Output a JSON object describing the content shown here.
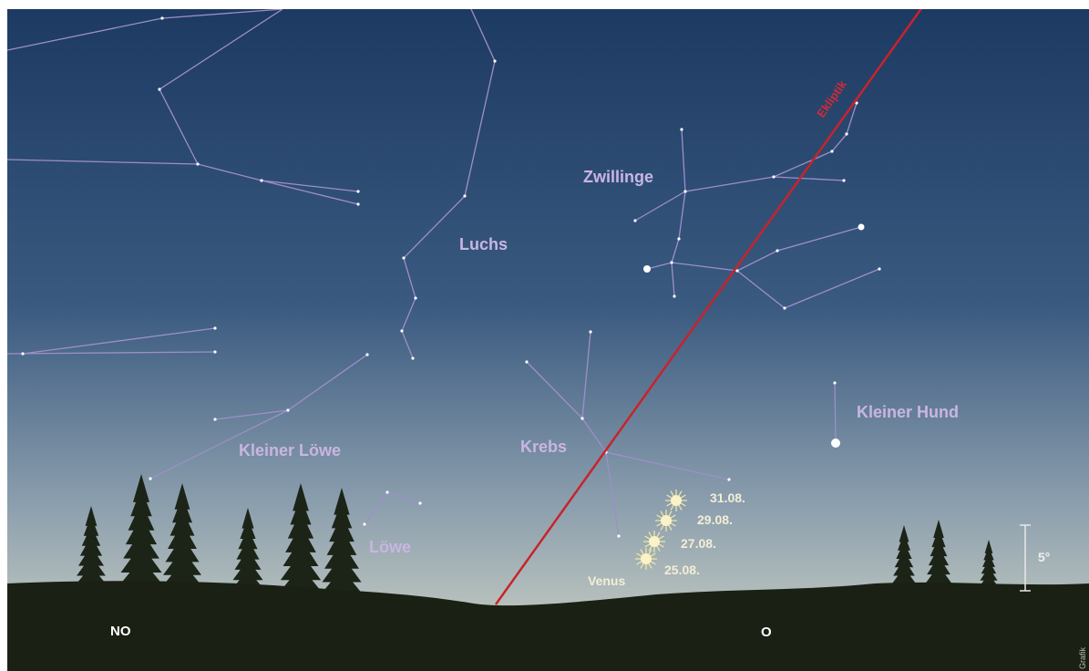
{
  "sky": {
    "constellations": [
      "Luchs",
      "Zwillinge",
      "Kleiner Löwe",
      "Krebs",
      "Kleiner Hund",
      "Löwe"
    ],
    "ecliptic": "Ekliptik",
    "venus": {
      "label": "Venus",
      "dates": [
        "31.08.",
        "29.08.",
        "27.08.",
        "25.08."
      ]
    },
    "scale": "5°",
    "directions": [
      "NO",
      "O"
    ],
    "credit": "Grafik"
  }
}
